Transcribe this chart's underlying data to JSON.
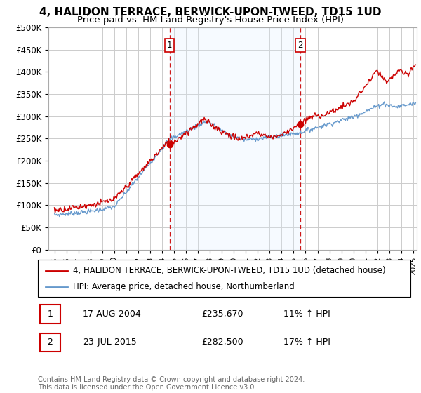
{
  "title": "4, HALIDON TERRACE, BERWICK-UPON-TWEED, TD15 1UD",
  "subtitle": "Price paid vs. HM Land Registry's House Price Index (HPI)",
  "ylabel_ticks": [
    "£0",
    "£50K",
    "£100K",
    "£150K",
    "£200K",
    "£250K",
    "£300K",
    "£350K",
    "£400K",
    "£450K",
    "£500K"
  ],
  "ytick_values": [
    0,
    50000,
    100000,
    150000,
    200000,
    250000,
    300000,
    350000,
    400000,
    450000,
    500000
  ],
  "ylim": [
    0,
    500000
  ],
  "xlim_start": 1994.5,
  "xlim_end": 2025.3,
  "marker1_x": 2004.63,
  "marker1_y": 235670,
  "marker1_label": "1",
  "marker2_x": 2015.55,
  "marker2_y": 282500,
  "marker2_label": "2",
  "red_line_color": "#cc0000",
  "blue_line_color": "#6699cc",
  "shade_color": "#ddeeff",
  "marker_line_color": "#cc0000",
  "grid_color": "#cccccc",
  "background_color": "#ffffff",
  "legend_line1": "4, HALIDON TERRACE, BERWICK-UPON-TWEED, TD15 1UD (detached house)",
  "legend_line2": "HPI: Average price, detached house, Northumberland",
  "table_row1": [
    "1",
    "17-AUG-2004",
    "£235,670",
    "11% ↑ HPI"
  ],
  "table_row2": [
    "2",
    "23-JUL-2015",
    "£282,500",
    "17% ↑ HPI"
  ],
  "copyright_text": "Contains HM Land Registry data © Crown copyright and database right 2024.\nThis data is licensed under the Open Government Licence v3.0.",
  "title_fontsize": 11,
  "subtitle_fontsize": 9.5,
  "tick_fontsize": 8.5,
  "legend_fontsize": 9
}
